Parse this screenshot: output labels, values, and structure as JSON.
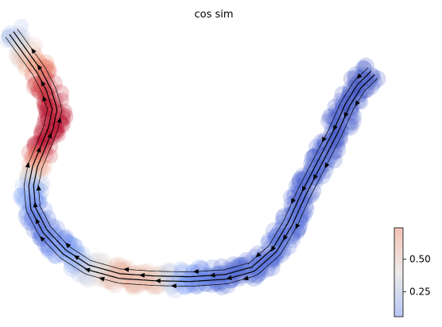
{
  "chart_data": {
    "type": "scatter",
    "title": "cos sim",
    "xlabel": "",
    "ylabel": "",
    "axes_visible": false,
    "grid": false,
    "colormap": "coolwarm",
    "colorbar": {
      "placement": "bottom-right",
      "range": [
        0.06,
        0.74
      ],
      "ticks": [
        0.25,
        0.5
      ],
      "tick_labels": [
        "0.25",
        "0.50"
      ]
    },
    "overlay": "streamlines with arrows",
    "embedding_units": "arbitrary",
    "x_range": [
      0,
      100
    ],
    "y_range": [
      0,
      70
    ],
    "curve": [
      {
        "x": 0.5,
        "y": 68.0,
        "v": 0.3
      },
      {
        "x": 4.0,
        "y": 63.0,
        "v": 0.45
      },
      {
        "x": 7.5,
        "y": 58.0,
        "v": 0.6
      },
      {
        "x": 10.0,
        "y": 53.0,
        "v": 0.68
      },
      {
        "x": 11.5,
        "y": 48.0,
        "v": 0.72
      },
      {
        "x": 10.5,
        "y": 43.0,
        "v": 0.74
      },
      {
        "x": 8.5,
        "y": 38.0,
        "v": 0.72
      },
      {
        "x": 6.5,
        "y": 33.0,
        "v": 0.55
      },
      {
        "x": 5.5,
        "y": 28.0,
        "v": 0.3
      },
      {
        "x": 6.0,
        "y": 22.0,
        "v": 0.18
      },
      {
        "x": 9.0,
        "y": 16.0,
        "v": 0.15
      },
      {
        "x": 14.0,
        "y": 10.5,
        "v": 0.2
      },
      {
        "x": 20.0,
        "y": 6.5,
        "v": 0.35
      },
      {
        "x": 28.0,
        "y": 4.2,
        "v": 0.5
      },
      {
        "x": 37.0,
        "y": 3.6,
        "v": 0.48
      },
      {
        "x": 46.0,
        "y": 3.4,
        "v": 0.2
      },
      {
        "x": 55.0,
        "y": 4.0,
        "v": 0.12
      },
      {
        "x": 62.0,
        "y": 6.0,
        "v": 0.13
      },
      {
        "x": 67.5,
        "y": 11.0,
        "v": 0.14
      },
      {
        "x": 71.5,
        "y": 18.0,
        "v": 0.13
      },
      {
        "x": 75.0,
        "y": 26.0,
        "v": 0.12
      },
      {
        "x": 79.0,
        "y": 34.0,
        "v": 0.11
      },
      {
        "x": 83.0,
        "y": 42.0,
        "v": 0.1
      },
      {
        "x": 86.0,
        "y": 49.0,
        "v": 0.09
      },
      {
        "x": 89.0,
        "y": 54.0,
        "v": 0.08
      },
      {
        "x": 92.5,
        "y": 57.5,
        "v": 0.08
      }
    ]
  }
}
